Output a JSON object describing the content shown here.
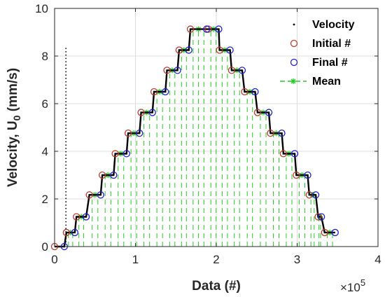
{
  "chart_data": {
    "type": "line",
    "title": "",
    "xlabel": "Data (#)",
    "ylabel_main": "Velocity, U",
    "ylabel_sub": "0",
    "ylabel_unit": " (mm/s)",
    "x_exponent_base": "×10",
    "x_exponent_power": "5",
    "xlim": [
      0,
      400000
    ],
    "ylim": [
      0,
      10
    ],
    "x_ticks": [
      0,
      100000,
      200000,
      300000,
      400000
    ],
    "x_tick_labels": [
      "0",
      "1",
      "2",
      "3",
      "4"
    ],
    "y_ticks": [
      0,
      2,
      4,
      6,
      8,
      10
    ],
    "y_tick_labels": [
      "0",
      "2",
      "4",
      "6",
      "8",
      "10"
    ],
    "grid": true,
    "legend_position": "top-right",
    "levels": [
      0.59,
      1.25,
      2.17,
      3.0,
      3.9,
      4.76,
      5.63,
      6.5,
      7.4,
      8.25,
      9.13
    ],
    "initial_x_up": [
      0,
      14600,
      27000,
      43000,
      59000,
      75000,
      91000,
      107000,
      123000,
      139000,
      154000,
      168000
    ],
    "final_x_up": [
      12000,
      25000,
      39000,
      57000,
      73000,
      89000,
      105000,
      121000,
      137000,
      152000,
      166000,
      188000
    ],
    "initial_x_down": [
      190000,
      204000,
      219000,
      235000,
      251000,
      267000,
      283000,
      299000,
      315000,
      326000,
      334000
    ],
    "final_x_down": [
      203000,
      217000,
      232000,
      248000,
      265000,
      281000,
      297000,
      313000,
      323000,
      330000,
      347000
    ],
    "spike": {
      "x": 14000,
      "y_max": 8.4
    },
    "series": [
      {
        "name": "Velocity",
        "color": "#000000",
        "marker": "dot"
      },
      {
        "name": "Initial #",
        "color": "#c0392b",
        "marker": "circle"
      },
      {
        "name": "Final #",
        "color": "#1f1fd6",
        "marker": "circle"
      },
      {
        "name": "Mean",
        "color": "#22cc22",
        "marker": "dash-star"
      }
    ]
  }
}
